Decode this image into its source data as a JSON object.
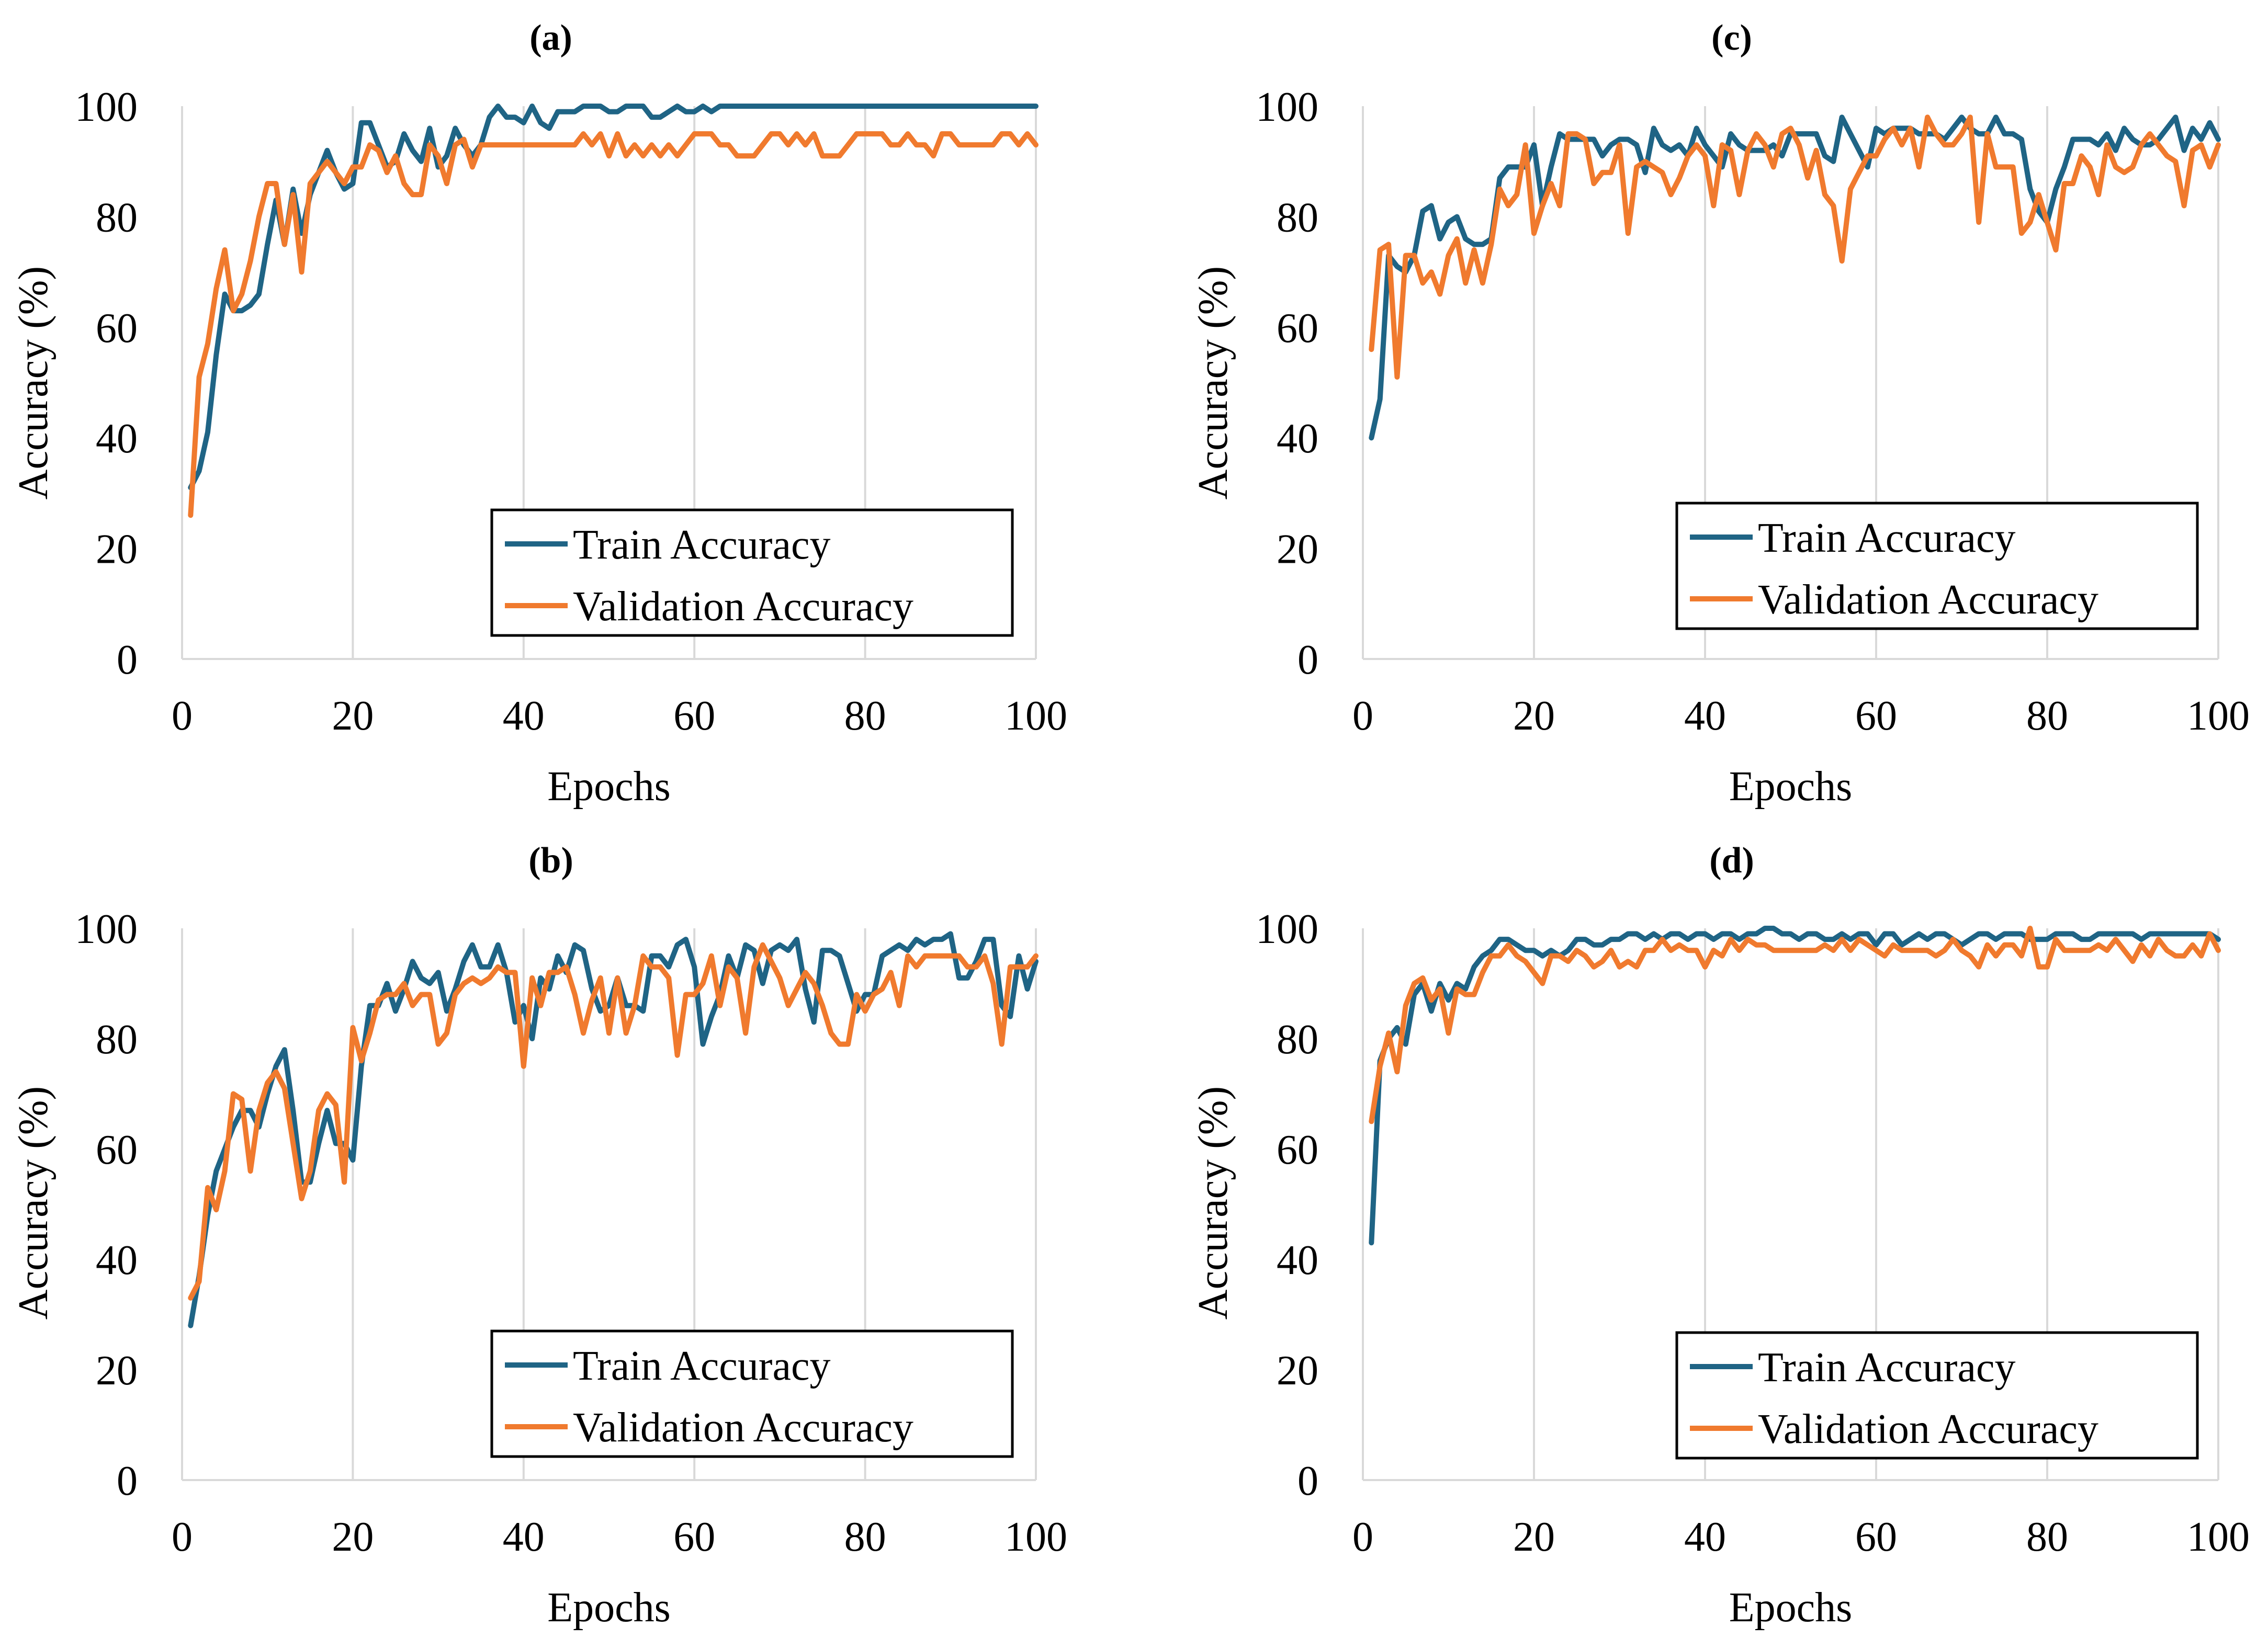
{
  "chart_data": [
    {
      "panel": "(a)",
      "type": "line",
      "title": "(a)",
      "xlabel": "Epochs",
      "ylabel": "Accuracy (%)",
      "xlim": [
        0,
        100
      ],
      "ylim": [
        0,
        100
      ],
      "xticks": [
        0,
        20,
        40,
        60,
        80,
        100
      ],
      "yticks": [
        0,
        20,
        40,
        60,
        80,
        100
      ],
      "grid": "vertical",
      "legend_position": "bottom-right",
      "series": [
        {
          "name": "Train Accuracy",
          "color": "#1f6485",
          "x_start": 1,
          "values": [
            31,
            34,
            41,
            55,
            66,
            63,
            63,
            64,
            66,
            75,
            83,
            75,
            85,
            77,
            84,
            88,
            92,
            88,
            85,
            86,
            97,
            97,
            93,
            89,
            90,
            95,
            92,
            90,
            96,
            89,
            91,
            96,
            93,
            91,
            93,
            98,
            100,
            98,
            98,
            97,
            100,
            97,
            96,
            99,
            99,
            99,
            100,
            100,
            100,
            99,
            99,
            100,
            100,
            100,
            98,
            98,
            99,
            100,
            99,
            99,
            100,
            99,
            100,
            100,
            100,
            100,
            100,
            100,
            100,
            100,
            100,
            100,
            100,
            100,
            100,
            100,
            100,
            100,
            100,
            100,
            100,
            100,
            100,
            100,
            100,
            100,
            100,
            100,
            100,
            100,
            100,
            100,
            100,
            100,
            100,
            100,
            100,
            100,
            100,
            100
          ]
        },
        {
          "name": "Validation Accuracy",
          "color": "#f07a2e",
          "x_start": 1,
          "values": [
            26,
            51,
            57,
            67,
            74,
            63,
            66,
            72,
            80,
            86,
            86,
            75,
            84,
            70,
            86,
            88,
            90,
            88,
            86,
            89,
            89,
            93,
            92,
            88,
            91,
            86,
            84,
            84,
            93,
            91,
            86,
            93,
            94,
            89,
            93,
            93,
            93,
            93,
            93,
            93,
            93,
            93,
            93,
            93,
            93,
            93,
            95,
            93,
            95,
            91,
            95,
            91,
            93,
            91,
            93,
            91,
            93,
            91,
            93,
            95,
            95,
            95,
            93,
            93,
            91,
            91,
            91,
            93,
            95,
            95,
            93,
            95,
            93,
            95,
            91,
            91,
            91,
            93,
            95,
            95,
            95,
            95,
            93,
            93,
            95,
            93,
            93,
            91,
            95,
            95,
            93,
            93,
            93,
            93,
            93,
            95,
            95,
            93,
            95,
            93
          ]
        }
      ]
    },
    {
      "panel": "(b)",
      "type": "line",
      "title": "(b)",
      "xlabel": "Epochs",
      "ylabel": "Accuracy (%)",
      "xlim": [
        0,
        100
      ],
      "ylim": [
        0,
        100
      ],
      "xticks": [
        0,
        20,
        40,
        60,
        80,
        100
      ],
      "yticks": [
        0,
        20,
        40,
        60,
        80,
        100
      ],
      "grid": "vertical",
      "legend_position": "bottom-right",
      "series": [
        {
          "name": "Train Accuracy",
          "color": "#1f6485",
          "x_start": 1,
          "values": [
            28,
            37,
            48,
            56,
            60,
            64,
            67,
            67,
            64,
            70,
            75,
            78,
            67,
            54,
            54,
            61,
            67,
            61,
            61,
            58,
            75,
            86,
            86,
            90,
            85,
            89,
            94,
            91,
            90,
            92,
            85,
            89,
            94,
            97,
            93,
            93,
            97,
            92,
            83,
            86,
            80,
            91,
            89,
            95,
            92,
            97,
            96,
            89,
            85,
            86,
            91,
            86,
            86,
            85,
            95,
            95,
            93,
            97,
            98,
            93,
            79,
            84,
            88,
            95,
            91,
            97,
            96,
            90,
            96,
            97,
            96,
            98,
            89,
            83,
            96,
            96,
            95,
            90,
            85,
            88,
            88,
            95,
            96,
            97,
            96,
            98,
            97,
            98,
            98,
            99,
            91,
            91,
            94,
            98,
            98,
            86,
            84,
            95,
            89,
            94
          ]
        },
        {
          "name": "Validation Accuracy",
          "color": "#f07a2e",
          "x_start": 1,
          "values": [
            33,
            36,
            53,
            49,
            56,
            70,
            69,
            56,
            67,
            72,
            74,
            71,
            61,
            51,
            56,
            67,
            70,
            68,
            54,
            82,
            76,
            81,
            87,
            88,
            88,
            90,
            86,
            88,
            88,
            79,
            81,
            88,
            90,
            91,
            90,
            91,
            93,
            92,
            92,
            75,
            91,
            86,
            92,
            92,
            93,
            88,
            81,
            87,
            91,
            81,
            91,
            81,
            86,
            95,
            93,
            93,
            91,
            77,
            88,
            88,
            90,
            95,
            86,
            93,
            91,
            81,
            93,
            97,
            94,
            91,
            86,
            89,
            92,
            90,
            86,
            81,
            79,
            79,
            88,
            85,
            88,
            89,
            92,
            86,
            95,
            93,
            95,
            95,
            95,
            95,
            95,
            93,
            93,
            95,
            90,
            79,
            93,
            93,
            93,
            95
          ]
        }
      ]
    },
    {
      "panel": "(c)",
      "type": "line",
      "title": "(c)",
      "xlabel": "Epochs",
      "ylabel": "Accuracy (%)",
      "xlim": [
        0,
        100
      ],
      "ylim": [
        0,
        100
      ],
      "xticks": [
        0,
        20,
        40,
        60,
        80,
        100
      ],
      "yticks": [
        0,
        20,
        40,
        60,
        80,
        100
      ],
      "grid": "vertical",
      "legend_position": "bottom-right",
      "series": [
        {
          "name": "Train Accuracy",
          "color": "#1f6485",
          "x_start": 1,
          "values": [
            40,
            47,
            73,
            71,
            70,
            73,
            81,
            82,
            76,
            79,
            80,
            76,
            75,
            75,
            76,
            87,
            89,
            89,
            89,
            93,
            82,
            89,
            95,
            94,
            94,
            94,
            94,
            91,
            93,
            94,
            94,
            93,
            88,
            96,
            93,
            92,
            93,
            91,
            96,
            93,
            91,
            89,
            95,
            93,
            92,
            92,
            92,
            93,
            91,
            95,
            95,
            95,
            95,
            91,
            90,
            98,
            95,
            92,
            89,
            96,
            95,
            96,
            96,
            96,
            95,
            95,
            95,
            94,
            96,
            98,
            96,
            95,
            95,
            98,
            95,
            95,
            94,
            85,
            81,
            79,
            85,
            89,
            94,
            94,
            94,
            93,
            95,
            92,
            96,
            94,
            93,
            93,
            94,
            96,
            98,
            92,
            96,
            94,
            97,
            94
          ]
        },
        {
          "name": "Validation Accuracy",
          "color": "#f07a2e",
          "x_start": 1,
          "values": [
            56,
            74,
            75,
            51,
            73,
            73,
            68,
            70,
            66,
            73,
            76,
            68,
            74,
            68,
            75,
            85,
            82,
            84,
            93,
            77,
            82,
            86,
            82,
            95,
            95,
            94,
            86,
            88,
            88,
            93,
            77,
            89,
            90,
            89,
            88,
            84,
            87,
            91,
            93,
            91,
            82,
            93,
            92,
            84,
            92,
            95,
            93,
            89,
            95,
            96,
            93,
            87,
            92,
            84,
            82,
            72,
            85,
            88,
            91,
            91,
            94,
            96,
            93,
            96,
            89,
            98,
            95,
            93,
            93,
            95,
            98,
            79,
            95,
            89,
            89,
            89,
            77,
            79,
            84,
            79,
            74,
            86,
            86,
            91,
            89,
            84,
            93,
            89,
            88,
            89,
            93,
            95,
            93,
            91,
            90,
            82,
            92,
            93,
            89,
            93
          ]
        }
      ]
    },
    {
      "panel": "(d)",
      "type": "line",
      "title": "(d)",
      "xlabel": "Epochs",
      "ylabel": "Accuracy (%)",
      "xlim": [
        0,
        100
      ],
      "ylim": [
        0,
        100
      ],
      "xticks": [
        0,
        20,
        40,
        60,
        80,
        100
      ],
      "yticks": [
        0,
        20,
        40,
        60,
        80,
        100
      ],
      "grid": "vertical",
      "legend_position": "bottom-right",
      "series": [
        {
          "name": "Train Accuracy",
          "color": "#1f6485",
          "x_start": 1,
          "values": [
            43,
            76,
            80,
            82,
            79,
            88,
            90,
            85,
            90,
            87,
            90,
            89,
            93,
            95,
            96,
            98,
            98,
            97,
            96,
            96,
            95,
            96,
            95,
            96,
            98,
            98,
            97,
            97,
            98,
            98,
            99,
            99,
            98,
            99,
            98,
            99,
            99,
            98,
            99,
            99,
            98,
            99,
            99,
            98,
            99,
            99,
            100,
            100,
            99,
            99,
            98,
            99,
            99,
            98,
            98,
            99,
            98,
            99,
            99,
            97,
            99,
            99,
            97,
            98,
            99,
            98,
            99,
            99,
            98,
            97,
            98,
            99,
            99,
            98,
            99,
            99,
            99,
            98,
            98,
            98,
            99,
            99,
            99,
            98,
            98,
            99,
            99,
            99,
            99,
            99,
            98,
            99,
            99,
            99,
            99,
            99,
            99,
            99,
            99,
            98
          ]
        },
        {
          "name": "Validation Accuracy",
          "color": "#f07a2e",
          "x_start": 1,
          "values": [
            65,
            75,
            81,
            74,
            86,
            90,
            91,
            87,
            89,
            81,
            89,
            88,
            88,
            92,
            95,
            95,
            97,
            95,
            94,
            92,
            90,
            95,
            95,
            94,
            96,
            95,
            93,
            94,
            96,
            93,
            94,
            93,
            96,
            96,
            98,
            96,
            97,
            96,
            96,
            93,
            96,
            95,
            98,
            96,
            98,
            97,
            97,
            96,
            96,
            96,
            96,
            96,
            96,
            97,
            96,
            98,
            96,
            98,
            97,
            96,
            95,
            97,
            96,
            96,
            96,
            96,
            95,
            96,
            98,
            96,
            95,
            93,
            97,
            95,
            97,
            97,
            95,
            100,
            93,
            93,
            98,
            96,
            96,
            96,
            96,
            97,
            96,
            98,
            96,
            94,
            97,
            95,
            98,
            96,
            95,
            95,
            97,
            95,
            99,
            96
          ]
        }
      ]
    }
  ]
}
